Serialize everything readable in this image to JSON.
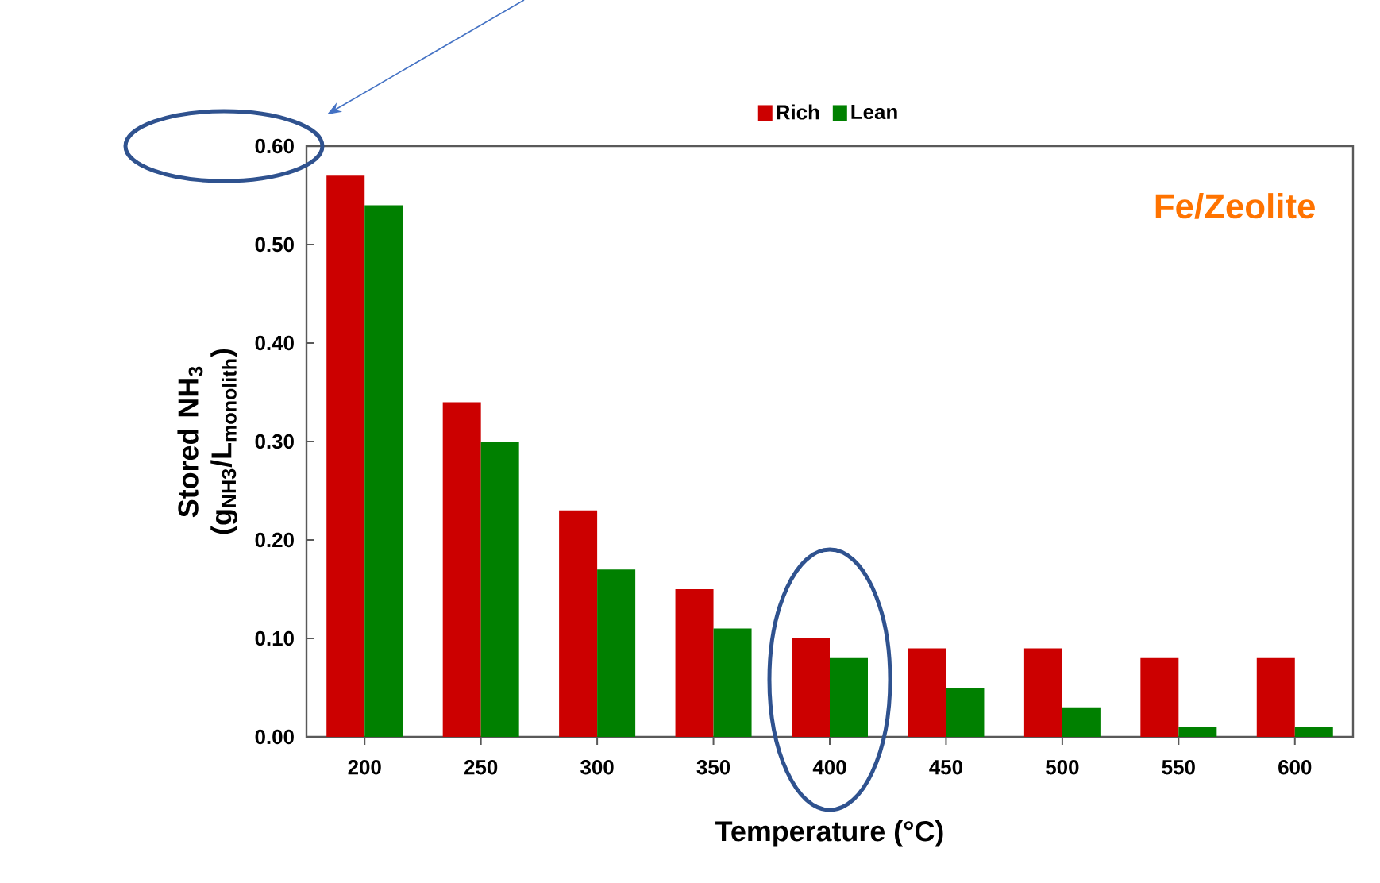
{
  "chart_data": {
    "type": "bar",
    "categories": [
      "200",
      "250",
      "300",
      "350",
      "400",
      "450",
      "500",
      "550",
      "600"
    ],
    "series": [
      {
        "name": "Rich",
        "color": "#cc0000",
        "values": [
          0.57,
          0.34,
          0.23,
          0.15,
          0.1,
          0.09,
          0.09,
          0.08,
          0.08
        ]
      },
      {
        "name": "Lean",
        "color": "#008000",
        "values": [
          0.54,
          0.3,
          0.17,
          0.11,
          0.08,
          0.05,
          0.03,
          0.01,
          0.01
        ]
      }
    ],
    "ylim": [
      0,
      0.6
    ],
    "yticks": [
      {
        "value": 0,
        "label": "0.00"
      },
      {
        "value": 0.1,
        "label": "0.10"
      },
      {
        "value": 0.2,
        "label": "0.20"
      },
      {
        "value": 0.3,
        "label": "0.30"
      },
      {
        "value": 0.4,
        "label": "0.40"
      },
      {
        "value": 0.5,
        "label": "0.50"
      },
      {
        "value": 0.6,
        "label": "0.60"
      }
    ],
    "xlabel": "Temperature (°C)",
    "ylabel": "Stored NH$_{3}$ (g$_{NH3}$/L$_{monolith}$)",
    "annotations": [
      "Fe/Zeolite"
    ],
    "legend": "top"
  }
}
